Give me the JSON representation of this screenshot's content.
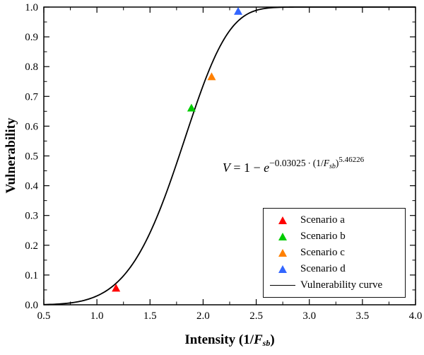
{
  "axis_labels": {
    "x_prefix": "Intensity (1/",
    "x_var": "F",
    "x_sub": "sb",
    "x_suffix": ")",
    "y": "Vulnerability"
  },
  "equation": {
    "v": "V",
    "mid": " = 1 − ",
    "e": "e",
    "exp_prefix": "−0.03025 ∙ (1/",
    "f": "F",
    "f_sub": "sb",
    "exp_close": ")",
    "power": "5.46226"
  },
  "chart_data": {
    "type": "scatter",
    "title": "",
    "xlabel": "Intensity (1/Fsb)",
    "ylabel": "Vulnerability",
    "xlim": [
      0.5,
      4.0
    ],
    "ylim": [
      0.0,
      1.0
    ],
    "grid": false,
    "legend_position": "bottom-right",
    "x_tick_values": [
      0.5,
      1.0,
      1.5,
      2.0,
      2.5,
      3.0,
      3.5,
      4.0
    ],
    "x_tick_labels": [
      "0.5",
      "1.0",
      "1.5",
      "2.0",
      "2.5",
      "3.0",
      "3.5",
      "4.0"
    ],
    "y_tick_values": [
      0.0,
      0.1,
      0.2,
      0.3,
      0.4,
      0.5,
      0.6,
      0.7,
      0.8,
      0.9,
      1.0
    ],
    "y_tick_labels": [
      "0.0",
      "0.1",
      "0.2",
      "0.3",
      "0.4",
      "0.5",
      "0.6",
      "0.7",
      "0.8",
      "0.9",
      "1.0"
    ],
    "series": [
      {
        "name": "Scenario a",
        "marker": "triangle",
        "color": "#fe0000",
        "points": [
          {
            "x": 1.18,
            "y": 0.055
          }
        ]
      },
      {
        "name": "Scenario b",
        "marker": "triangle",
        "color": "#00cc00",
        "points": [
          {
            "x": 1.89,
            "y": 0.66
          }
        ]
      },
      {
        "name": "Scenario c",
        "marker": "triangle",
        "color": "#ff8000",
        "points": [
          {
            "x": 2.08,
            "y": 0.765
          }
        ]
      },
      {
        "name": "Scenario d",
        "marker": "triangle",
        "color": "#3366ff",
        "points": [
          {
            "x": 2.33,
            "y": 0.985
          }
        ]
      }
    ],
    "curve": {
      "name": "Vulnerability curve",
      "color": "#000000",
      "formula": "V = 1 − e^(−0.03025∙(1/Fsb)^5.46226)",
      "coefficient": 0.03025,
      "exponent": 5.46226,
      "x_range": [
        0.5,
        4.0
      ]
    }
  }
}
